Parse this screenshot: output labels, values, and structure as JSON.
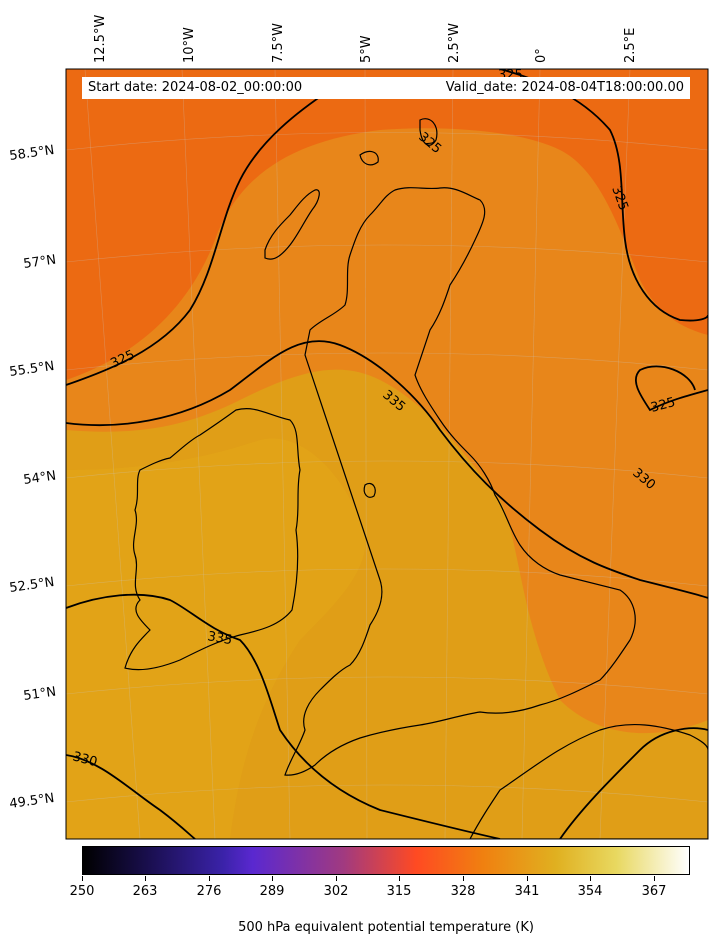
{
  "header": {
    "start_date": "Start date: 2024-08-02_00:00:00",
    "valid_date": "Valid_date: 2024-08-04T18:00:00.00"
  },
  "axes": {
    "lon_labels": [
      "12.5°W",
      "10°W",
      "7.5°W",
      "5°W",
      "2.5°W",
      "0°",
      "2.5°E"
    ],
    "lat_labels": [
      "58.5°N",
      "57°N",
      "55.5°N",
      "54°N",
      "52.5°N",
      "51°N",
      "49.5°N"
    ]
  },
  "contour_labels": [
    "325",
    "325",
    "325",
    "335",
    "325",
    "330",
    "335",
    "330",
    "325"
  ],
  "colorbar": {
    "title": "500 hPa equivalent potential temperature (K)",
    "ticks": [
      "250",
      "263",
      "276",
      "289",
      "302",
      "315",
      "328",
      "341",
      "354",
      "367"
    ],
    "colormap": [
      "#000000",
      "#1a0f50",
      "#3a22a8",
      "#5a28d0",
      "#a13a80",
      "#ff4a22",
      "#f08010",
      "#e0b020",
      "#e8d860",
      "#ffffff"
    ]
  },
  "colors": {
    "warm_orange": "#ec6a12",
    "mid_orange": "#e7901a",
    "gold": "#e0a516",
    "coast": "#000000"
  }
}
